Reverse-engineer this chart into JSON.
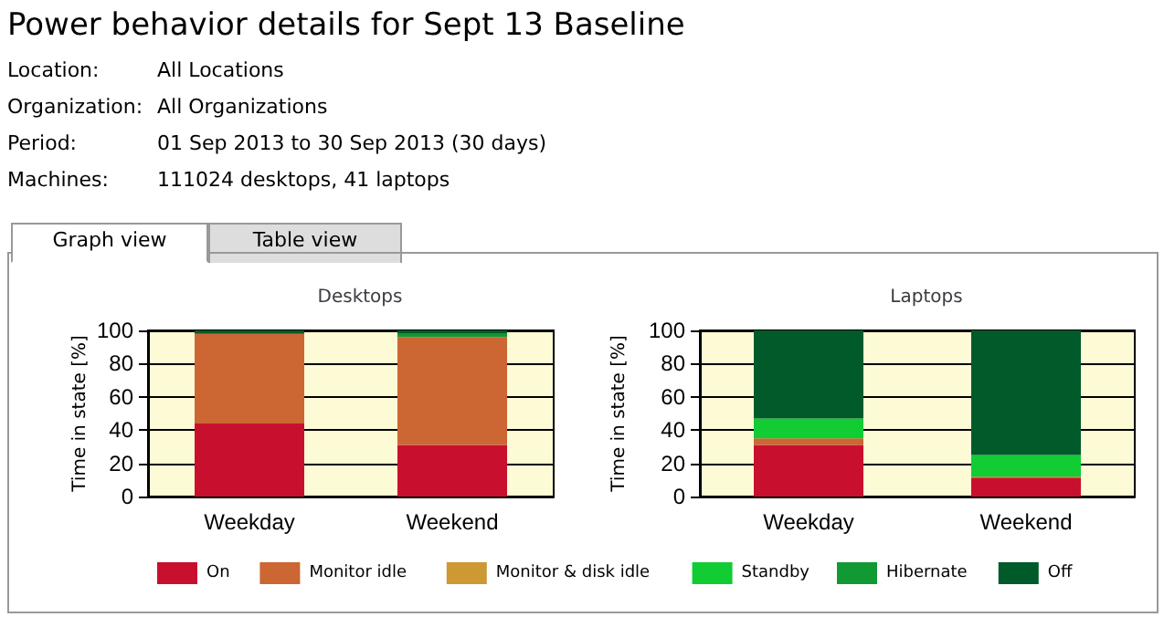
{
  "chart_data": [
    {
      "type": "bar",
      "title": "Desktops",
      "ylabel": "Time in state [%]",
      "categories": [
        "Weekday",
        "Weekend"
      ],
      "stacked": true,
      "annotations": [
        "Power behavior details for Sept 13 Baseline",
        "Location:",
        "All Locations",
        "Organization:",
        "All Organizations",
        "Period:",
        "01 Sep 2013 to 30 Sep 2013 (30 days)",
        "Machines:",
        "111024 desktops, 41 laptops",
        "Graph view",
        "Table view"
      ],
      "series": [
        {
          "name": "On",
          "color": "#c8102e",
          "values": [
            44,
            31
          ]
        },
        {
          "name": "Monitor idle",
          "color": "#cc6633",
          "values": [
            54,
            65
          ]
        },
        {
          "name": "Monitor & disk idle",
          "color": "#cc9933",
          "values": [
            0,
            0
          ]
        },
        {
          "name": "Standby",
          "color": "#11cc33",
          "values": [
            0,
            0
          ]
        },
        {
          "name": "Hibernate",
          "color": "#119933",
          "values": [
            0,
            2
          ]
        },
        {
          "name": "Off",
          "color": "#005a2a",
          "values": [
            2,
            2
          ]
        }
      ],
      "ylim": [
        0,
        100
      ],
      "yticks": [
        0,
        20,
        40,
        60,
        80,
        100
      ],
      "grid": "y",
      "legend": "bottom"
    },
    {
      "type": "bar",
      "title": "Laptops",
      "ylabel": "Time in state [%]",
      "categories": [
        "Weekday",
        "Weekend"
      ],
      "stacked": true,
      "series": [
        {
          "color": "#c8102e",
          "values": [
            31,
            11
          ]
        },
        {
          "color": "#cc6633",
          "values": [
            4,
            1
          ]
        },
        {
          "color": "#cc9933",
          "values": [
            0,
            0
          ]
        },
        {
          "color": "#11cc33",
          "values": [
            12,
            13
          ]
        },
        {
          "color": "#119933",
          "values": [
            0,
            0
          ]
        },
        {
          "color": "#005a2a",
          "values": [
            53,
            75
          ]
        }
      ],
      "ylim": [
        0,
        100
      ],
      "yticks": [
        0,
        20,
        40,
        60,
        80,
        100
      ],
      "grid": "y",
      "legend": false
    }
  ]
}
